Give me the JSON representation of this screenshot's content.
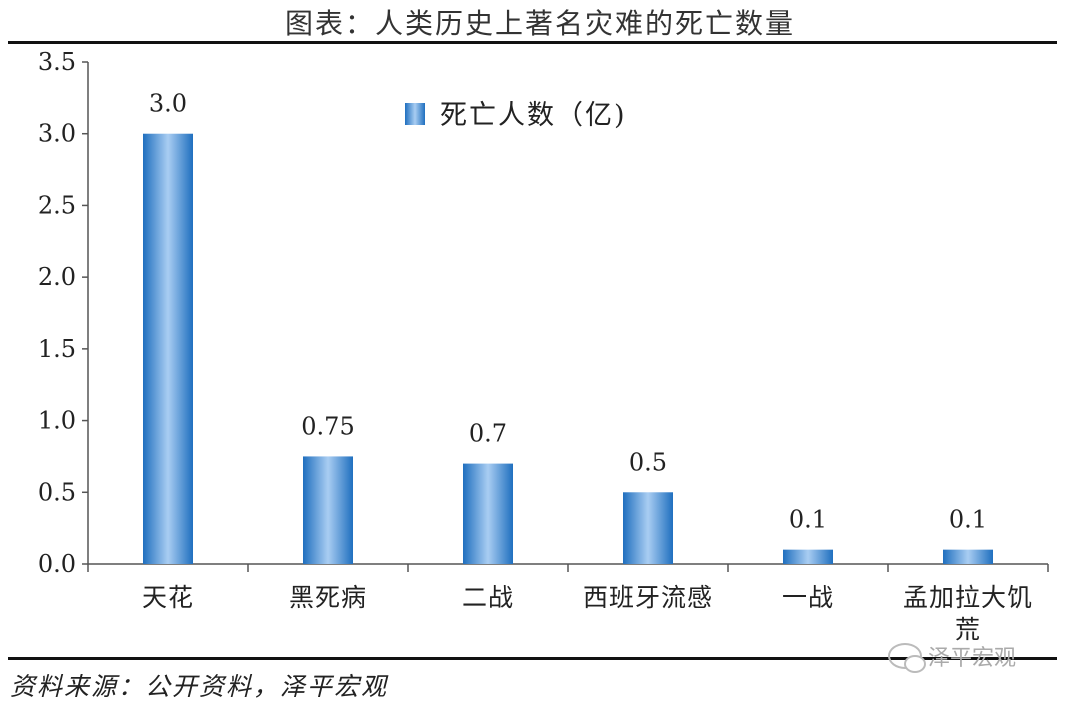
{
  "header": {
    "title": "图表：人类历史上著名灾难的死亡数量"
  },
  "footer": {
    "source": "资料来源：公开资料，泽平宏观",
    "watermark": "泽平宏观"
  },
  "chart_data": {
    "type": "bar",
    "categories": [
      "天花",
      "黑死病",
      "二战",
      "西班牙流感",
      "一战",
      "孟加拉大饥荒"
    ],
    "series": [
      {
        "name": "死亡人数（亿)",
        "values": [
          3.0,
          0.75,
          0.7,
          0.5,
          0.1,
          0.1
        ]
      }
    ],
    "data_labels": [
      "3.0",
      "0.75",
      "0.7",
      "0.5",
      "0.1",
      "0.1"
    ],
    "y_ticks": [
      "0.0",
      "0.5",
      "1.0",
      "1.5",
      "2.0",
      "2.5",
      "3.0",
      "3.5"
    ],
    "ylim": [
      0,
      3.5
    ],
    "legend_position": "top-center",
    "grid": false,
    "bar_color": "#4a8fd6"
  }
}
